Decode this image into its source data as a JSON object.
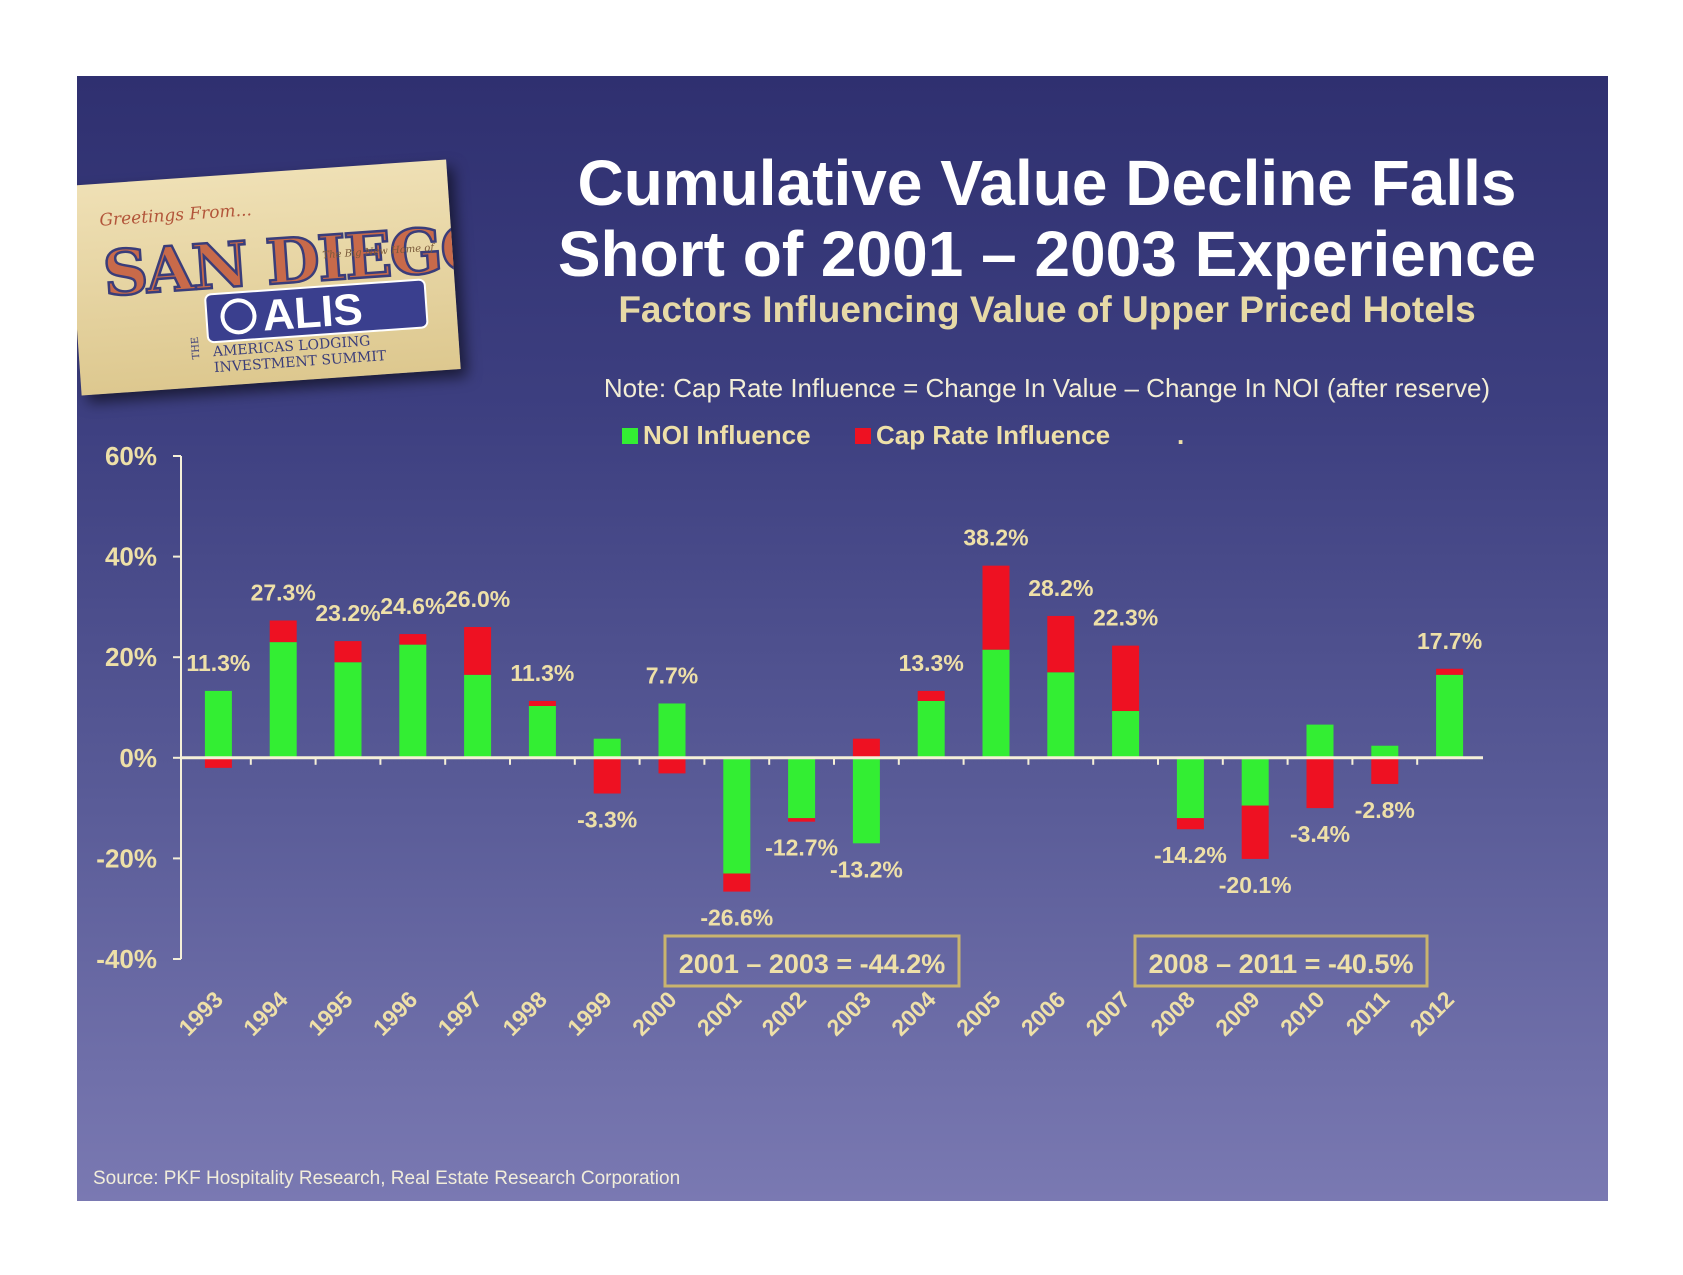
{
  "title_line1": "Cumulative Value Decline Falls",
  "title_line2": "Short of 2001 – 2003 Experience",
  "subtitle": "Factors Influencing Value of Upper Priced Hotels",
  "note": "Note: Cap Rate Influence = Change In Value – Change In NOI (after reserve)",
  "source": "Source: PKF Hospitality Research, Real Estate Research Corporation",
  "logo": {
    "greeting": "Greetings From...",
    "city": "SAN DIEGO",
    "tagline": "The Big New Home of",
    "brand": "ALIS",
    "brand_article": "THE",
    "brand_line1": "AMERICAS LODGING",
    "brand_line2": "INVESTMENT SUMMIT"
  },
  "colors": {
    "noi": "#33ee33",
    "cap_rate": "#ee1122",
    "label": "#eee0a8",
    "axis": "#f5f0d8",
    "box_border": "#c9b46e"
  },
  "chart_data": {
    "type": "bar",
    "stacked": true,
    "ylim": [
      -40,
      60
    ],
    "yticks": [
      -40,
      -20,
      0,
      20,
      40,
      60
    ],
    "ytick_labels": [
      "-40%",
      "-20%",
      "0%",
      "20%",
      "40%",
      "60%"
    ],
    "categories": [
      "1993",
      "1994",
      "1995",
      "1996",
      "1997",
      "1998",
      "1999",
      "2000",
      "2001",
      "2002",
      "2003",
      "2004",
      "2005",
      "2006",
      "2007",
      "2008",
      "2009",
      "2010",
      "2011",
      "2012"
    ],
    "series": [
      {
        "name": "NOI Influence",
        "values": [
          13.3,
          23.0,
          19.0,
          22.5,
          16.5,
          10.3,
          3.8,
          10.8,
          -23.0,
          -12.0,
          -17.0,
          11.3,
          21.5,
          17.0,
          9.3,
          -12.0,
          -9.5,
          6.6,
          2.4,
          16.5
        ]
      },
      {
        "name": "Cap Rate Influence",
        "values": [
          -2.0,
          4.3,
          4.2,
          2.1,
          9.5,
          1.0,
          -7.1,
          -3.1,
          -3.6,
          -0.7,
          3.8,
          2.0,
          16.7,
          11.2,
          13.0,
          -2.2,
          -10.6,
          -10.0,
          -5.2,
          1.2
        ]
      }
    ],
    "value_labels": [
      "11.3%",
      "27.3%",
      "23.2%",
      "24.6%",
      "26.0%",
      "11.3%",
      "-3.3%",
      "7.7%",
      "-26.6%",
      "-12.7%",
      "-13.2%",
      "13.3%",
      "38.2%",
      "28.2%",
      "22.3%",
      "-14.2%",
      "-20.1%",
      "-3.4%",
      "-2.8%",
      "17.7%"
    ],
    "legend_extra": ".",
    "annotations": [
      {
        "text": "2001 – 2003 = -44.2%"
      },
      {
        "text": "2008 – 2011 = -40.5%"
      }
    ]
  }
}
